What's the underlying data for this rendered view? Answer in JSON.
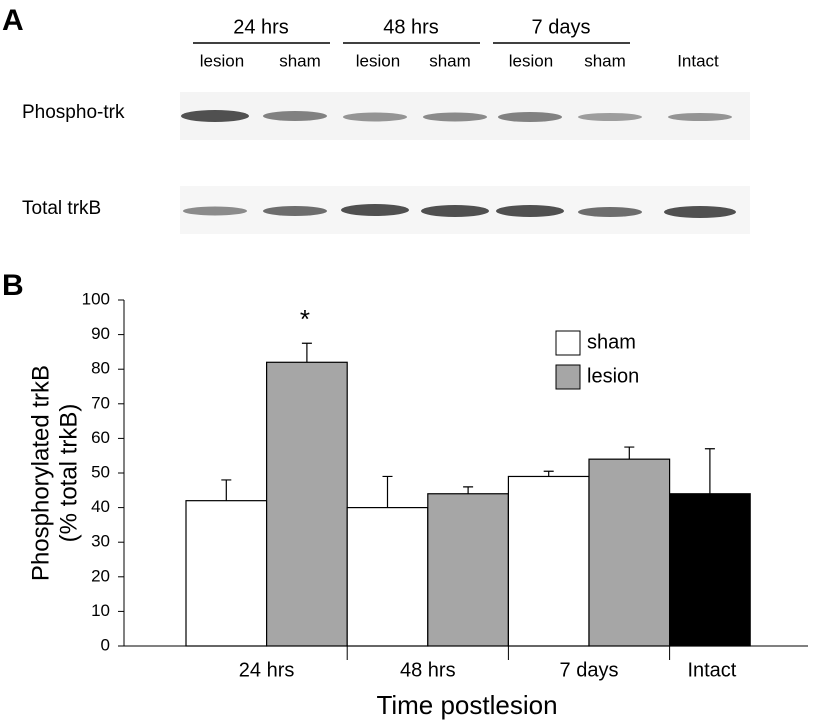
{
  "panel_a": {
    "label": "A",
    "groups": [
      "24 hrs",
      "48 hrs",
      "7 days"
    ],
    "lanes": [
      "lesion",
      "sham",
      "lesion",
      "sham",
      "lesion",
      "sham",
      "Intact"
    ],
    "rows": [
      "Phospho-trk",
      "Total trkB"
    ]
  },
  "chart_data": {
    "type": "bar",
    "panel_label": "B",
    "xlabel": "Time postlesion",
    "ylabel": [
      "Phosphorylated  trkB",
      "(% total trkB)"
    ],
    "categories": [
      "24 hrs",
      "48 hrs",
      "7 days",
      "Intact"
    ],
    "series": [
      {
        "name": "sham",
        "color": "#ffffff",
        "values": [
          42,
          40,
          49,
          null
        ],
        "errors": [
          6,
          9,
          1.5,
          null
        ]
      },
      {
        "name": "lesion",
        "color": "#a6a6a6",
        "values": [
          82,
          44,
          54,
          null
        ],
        "errors": [
          5.5,
          2,
          3.5,
          null
        ]
      },
      {
        "color": "#000000",
        "values": [
          null,
          null,
          null,
          44
        ],
        "errors": [
          null,
          null,
          null,
          13
        ]
      }
    ],
    "annotation": "*",
    "ylim": [
      0,
      100
    ],
    "yticks": [
      0,
      10,
      20,
      30,
      40,
      50,
      60,
      70,
      80,
      90,
      100
    ],
    "legend": "top-right",
    "grid": false
  }
}
